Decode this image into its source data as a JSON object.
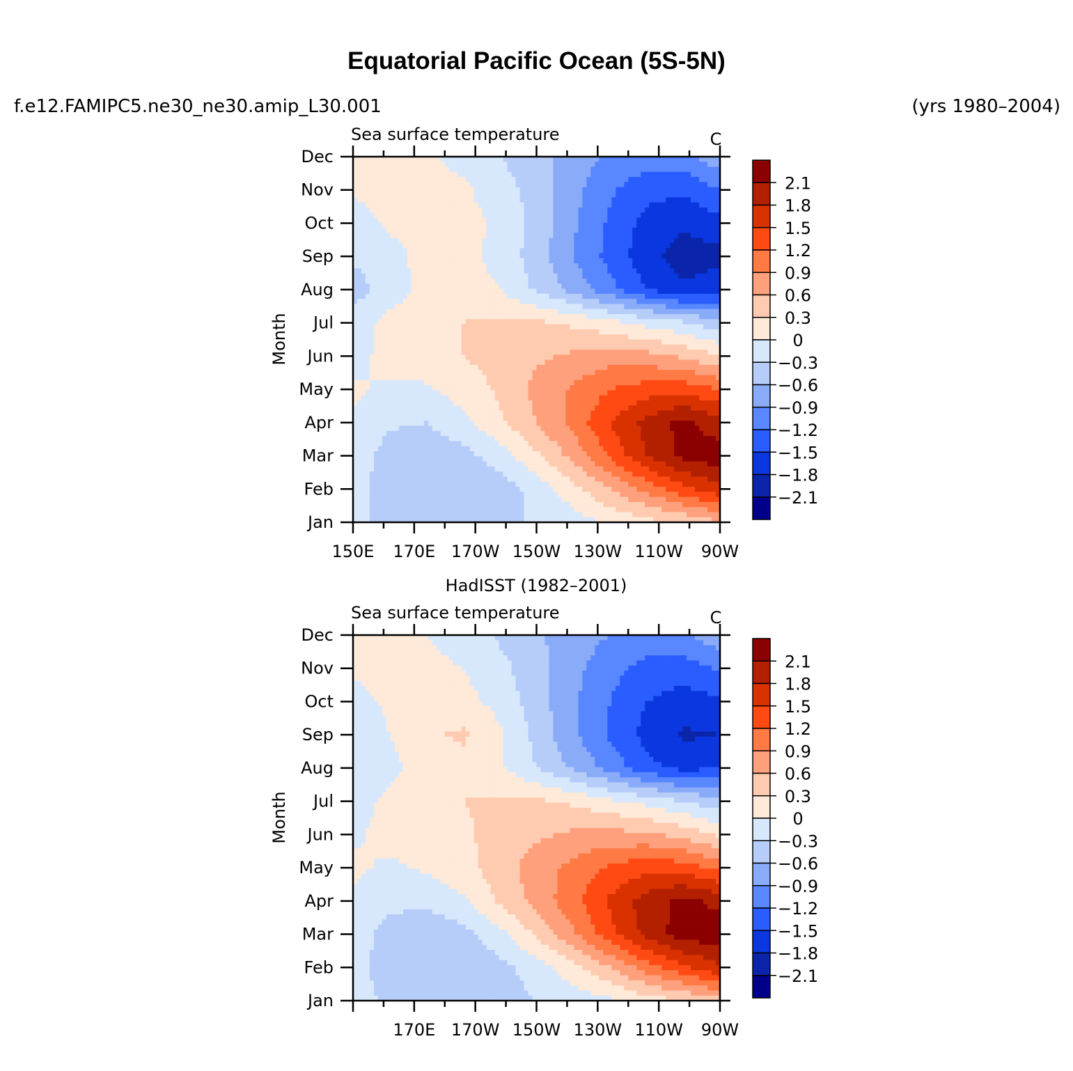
{
  "title": "Equatorial Pacific Ocean (5S-5N)",
  "case_name": "f.e12.FAMIPC5.ne30_ne30.amip_L30.001",
  "years": "(yrs 1980–2004)",
  "colorbar": {
    "levels": [
      "2.1",
      "1.8",
      "1.5",
      "1.2",
      "0.9",
      "0.6",
      "0.3",
      "0",
      "−0.3",
      "−0.6",
      "−0.9",
      "−1.2",
      "−1.5",
      "−1.8",
      "−2.1"
    ],
    "colors": [
      "#8b0000",
      "#b32000",
      "#d93200",
      "#ff4a14",
      "#ff7a45",
      "#ffa07d",
      "#ffcbb0",
      "#ffe9d8",
      "#d8e8fc",
      "#b6cdfa",
      "#89abf8",
      "#5887ff",
      "#2a5dff",
      "#0a37e0",
      "#0a25aa",
      "#00008b"
    ]
  },
  "chart_data": [
    {
      "type": "heatmap",
      "panel_title": "",
      "left_label": "Sea surface temperature",
      "units": "C",
      "ylabel": "Month",
      "y_ticks": [
        "Jan",
        "Feb",
        "Mar",
        "Apr",
        "May",
        "Jun",
        "Jul",
        "Aug",
        "Sep",
        "Oct",
        "Nov",
        "Dec"
      ],
      "x_ticks": [
        "150E",
        "170E",
        "170W",
        "150W",
        "130W",
        "110W",
        "90W"
      ],
      "xlim": [
        150,
        270
      ],
      "contour_levels": [
        -2.1,
        -1.8,
        -1.5,
        -1.2,
        -0.9,
        -0.6,
        -0.3,
        0,
        0.3,
        0.6,
        0.9,
        1.2,
        1.5,
        1.8,
        2.1
      ],
      "field": [
        [
          -0.1,
          -0.5,
          -0.6,
          -0.55,
          -0.4,
          -0.25,
          -0.15,
          0.05,
          0.2,
          0.35,
          0.55
        ],
        [
          -0.15,
          -0.5,
          -0.6,
          -0.55,
          -0.45,
          -0.2,
          0.2,
          0.6,
          1.0,
          1.4,
          1.7
        ],
        [
          -0.1,
          -0.45,
          -0.5,
          -0.4,
          -0.15,
          0.25,
          0.7,
          1.25,
          1.8,
          2.2,
          2.3
        ],
        [
          -0.05,
          -0.25,
          -0.3,
          -0.1,
          0.25,
          0.6,
          1.0,
          1.5,
          1.9,
          2.2,
          1.9
        ],
        [
          0.05,
          -0.05,
          -0.05,
          0.15,
          0.35,
          0.7,
          0.95,
          1.2,
          1.35,
          1.4,
          1.2
        ],
        [
          -0.1,
          0.1,
          0.2,
          0.3,
          0.4,
          0.55,
          0.65,
          0.75,
          0.7,
          0.55,
          0.3
        ],
        [
          -0.15,
          0.1,
          0.15,
          0.3,
          0.35,
          0.35,
          0.25,
          0.1,
          -0.1,
          -0.25,
          -0.5
        ],
        [
          -0.45,
          -0.15,
          0.1,
          0.15,
          0.0,
          -0.35,
          -0.7,
          -1.1,
          -1.5,
          -1.75,
          -1.6
        ],
        [
          -0.25,
          -0.1,
          0.1,
          0.1,
          -0.1,
          -0.45,
          -0.9,
          -1.3,
          -1.7,
          -1.95,
          -1.9
        ],
        [
          -0.15,
          0.05,
          0.1,
          0.1,
          -0.05,
          -0.4,
          -0.85,
          -1.25,
          -1.6,
          -1.75,
          -1.6
        ],
        [
          0.05,
          0.1,
          0.1,
          0.05,
          -0.15,
          -0.45,
          -0.8,
          -1.15,
          -1.4,
          -1.45,
          -1.2
        ],
        [
          0.1,
          0.1,
          0.05,
          -0.1,
          -0.3,
          -0.5,
          -0.75,
          -0.95,
          -1.05,
          -1.0,
          -0.7
        ]
      ]
    },
    {
      "type": "heatmap",
      "panel_title": "HadISST (1982–2001)",
      "left_label": "Sea surface temperature",
      "units": "C",
      "ylabel": "Month",
      "y_ticks": [
        "Jan",
        "Feb",
        "Mar",
        "Apr",
        "May",
        "Jun",
        "Jul",
        "Aug",
        "Sep",
        "Oct",
        "Nov",
        "Dec"
      ],
      "x_ticks": [
        "",
        "170E",
        "170W",
        "150W",
        "130W",
        "110W",
        "90W"
      ],
      "xlim": [
        150,
        270
      ],
      "contour_levels": [
        -2.1,
        -1.8,
        -1.5,
        -1.2,
        -0.9,
        -0.6,
        -0.3,
        0,
        0.3,
        0.6,
        0.9,
        1.2,
        1.5,
        1.8,
        2.1
      ],
      "field": [
        [
          -0.1,
          -0.4,
          -0.6,
          -0.55,
          -0.45,
          -0.3,
          -0.2,
          -0.05,
          0.15,
          0.3,
          0.5
        ],
        [
          -0.15,
          -0.5,
          -0.6,
          -0.55,
          -0.4,
          -0.15,
          0.2,
          0.6,
          1.05,
          1.45,
          1.75
        ],
        [
          -0.1,
          -0.45,
          -0.5,
          -0.4,
          -0.1,
          0.35,
          0.85,
          1.4,
          1.9,
          2.25,
          2.3
        ],
        [
          -0.05,
          -0.2,
          -0.25,
          -0.05,
          0.35,
          0.7,
          1.1,
          1.55,
          1.95,
          2.2,
          2.0
        ],
        [
          0.05,
          -0.05,
          0.05,
          0.2,
          0.45,
          0.75,
          1.0,
          1.25,
          1.4,
          1.35,
          1.1
        ],
        [
          -0.05,
          0.1,
          0.15,
          0.25,
          0.4,
          0.55,
          0.65,
          0.7,
          0.65,
          0.5,
          0.25
        ],
        [
          -0.15,
          0.1,
          0.15,
          0.3,
          0.35,
          0.35,
          0.25,
          0.05,
          -0.1,
          -0.3,
          -0.5
        ],
        [
          -0.3,
          -0.1,
          0.15,
          0.2,
          0.05,
          -0.3,
          -0.65,
          -1.0,
          -1.4,
          -1.6,
          -1.5
        ],
        [
          -0.25,
          0.0,
          0.25,
          0.35,
          0.05,
          -0.4,
          -0.85,
          -1.25,
          -1.6,
          -1.85,
          -1.8
        ],
        [
          -0.1,
          0.05,
          0.15,
          0.1,
          -0.1,
          -0.45,
          -0.85,
          -1.2,
          -1.5,
          -1.65,
          -1.55
        ],
        [
          0.05,
          0.1,
          0.1,
          0.0,
          -0.2,
          -0.5,
          -0.8,
          -1.1,
          -1.3,
          -1.35,
          -1.15
        ],
        [
          0.1,
          0.1,
          0.0,
          -0.15,
          -0.35,
          -0.55,
          -0.75,
          -0.9,
          -1.0,
          -0.95,
          -0.7
        ]
      ]
    }
  ]
}
